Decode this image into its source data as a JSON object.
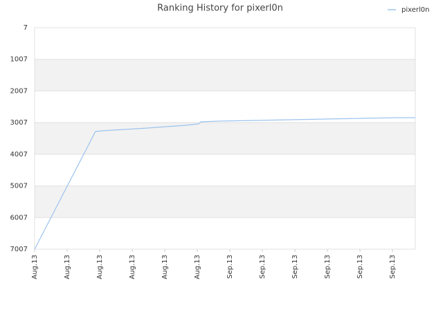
{
  "chart_data": {
    "type": "line",
    "title": "Ranking History for pixerl0n",
    "series": [
      {
        "name": "pixerl0n",
        "color": "#9cc3ee",
        "x": [
          0,
          1.87,
          2.09,
          2.4,
          2.77,
          3.47,
          4.04,
          4.36,
          4.64,
          5.04,
          5.11,
          5.64,
          6.77,
          7.87,
          8.94,
          10.06,
          11.17,
          11.7
        ],
        "values": [
          7007,
          3288,
          3266,
          3244,
          3222,
          3179,
          3135,
          3113,
          3091,
          3048,
          2982,
          2960,
          2938,
          2916,
          2894,
          2873,
          2851,
          2851
        ]
      }
    ],
    "xlim": [
      0,
      11.7
    ],
    "xticks": [
      {
        "value": 0,
        "label": "Aug.13"
      },
      {
        "value": 1,
        "label": "Aug.13"
      },
      {
        "value": 2,
        "label": "Aug.13"
      },
      {
        "value": 3,
        "label": "Aug.13"
      },
      {
        "value": 4,
        "label": "Aug.13"
      },
      {
        "value": 5,
        "label": "Aug.13"
      },
      {
        "value": 6,
        "label": "Sep.13"
      },
      {
        "value": 7,
        "label": "Sep.13"
      },
      {
        "value": 8,
        "label": "Sep.13"
      },
      {
        "value": 9,
        "label": "Sep.13"
      },
      {
        "value": 10,
        "label": "Sep.13"
      },
      {
        "value": 11,
        "label": "Sep.13"
      }
    ],
    "ylim": [
      7007,
      7
    ],
    "yticks": [
      7,
      1007,
      2007,
      3007,
      4007,
      5007,
      6007,
      7007
    ],
    "grid": true,
    "legend": "top-right"
  }
}
